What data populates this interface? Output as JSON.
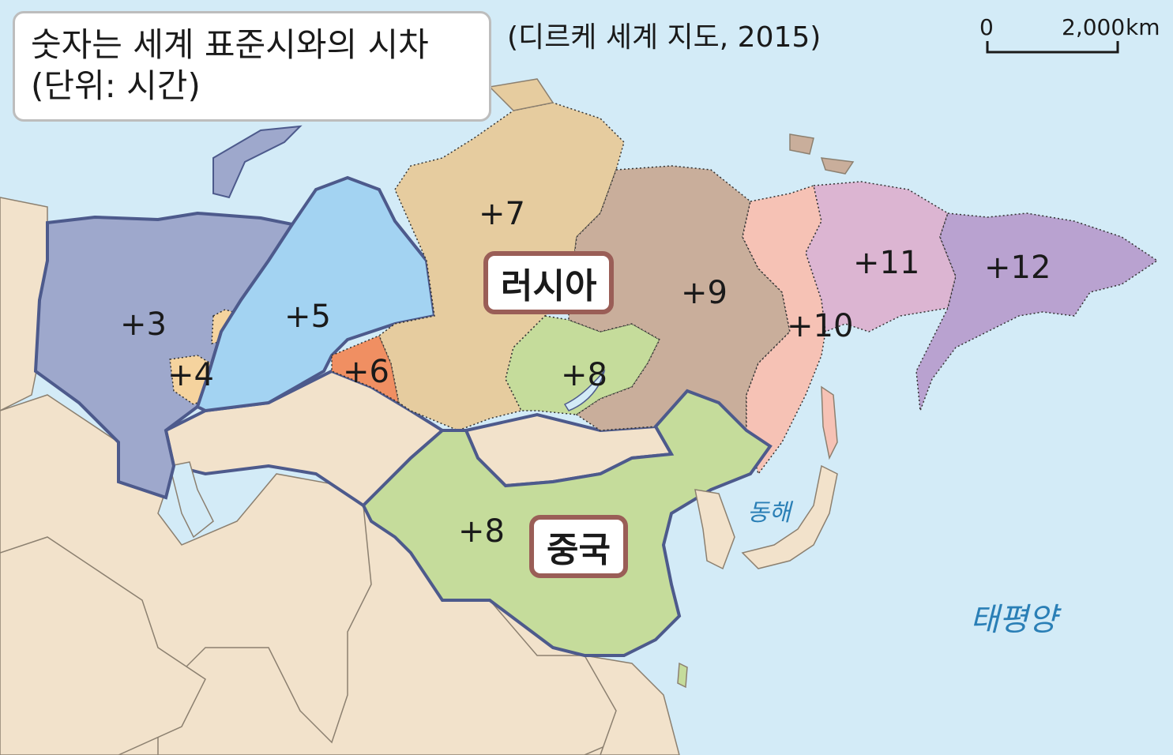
{
  "legend": {
    "line1": "숫자는 세계 표준시와의 시차",
    "line2": "(단위: 시간)"
  },
  "source": "(디르케 세계 지도, 2015)",
  "scale": {
    "zero": "0",
    "distance": "2,000",
    "unit": "km"
  },
  "timezones": {
    "z3": "+3",
    "z4": "+4",
    "z5": "+5",
    "z6": "+6",
    "z7": "+7",
    "z8_russia": "+8",
    "z9": "+9",
    "z10": "+10",
    "z11": "+11",
    "z12": "+12",
    "z8_china": "+8"
  },
  "countries": {
    "russia": "러시아",
    "china": "중국"
  },
  "seas": {
    "east_sea": "동해",
    "pacific": "태평양"
  },
  "colors": {
    "sea": "#d3ebf7",
    "land": "#f2e2cb",
    "land_other": "#f0d9b5",
    "z3": "#9ea8cc",
    "z4": "#f5d39e",
    "z5": "#a3d3f2",
    "z6": "#f08f62",
    "z7": "#e6cc9f",
    "z8": "#c5dc9b",
    "z9": "#c9ae9b",
    "z10": "#f6c2b5",
    "z11": "#dcb5d2",
    "z12": "#b9a2d0",
    "border": "#4d5a8c",
    "label_border": "#9a5e57"
  }
}
